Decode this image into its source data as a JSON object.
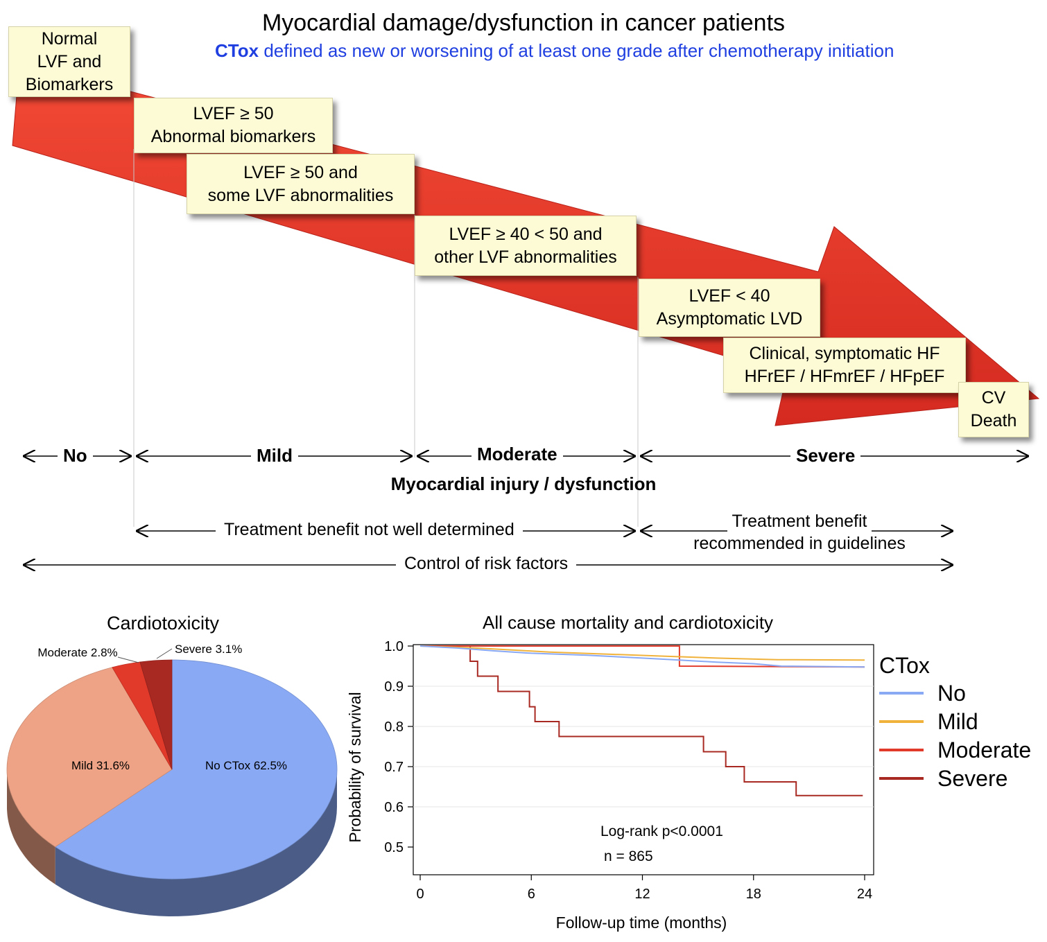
{
  "title": "Myocardial damage/dysfunction in cancer patients",
  "subtitle": {
    "bold": "CTox",
    "rest": "defined as new or worsening of at least one grade after chemotherapy initiation"
  },
  "stages": [
    {
      "text": "Normal\nLVF and\nBiomarkers"
    },
    {
      "text": "LVEF ≥ 50\nAbnormal biomarkers"
    },
    {
      "text": "LVEF ≥ 50 and\nsome LVF abnormalities"
    },
    {
      "text": "LVEF ≥ 40 < 50 and\nother LVF abnormalities"
    },
    {
      "text": "LVEF < 40\nAsymptomatic LVD"
    },
    {
      "text": "Clinical, symptomatic  HF\nHFrEF / HFmrEF / HFpEF"
    },
    {
      "text": "CV\nDeath"
    }
  ],
  "severity": {
    "no": "No",
    "mild": "Mild",
    "moderate": "Moderate",
    "severe": "Severe",
    "axis_label": "Myocardial injury / dysfunction"
  },
  "treatment": {
    "not_determined": "Treatment benefit not well determined",
    "recommended_line1": "Treatment benefit",
    "recommended_line2": "recommended in guidelines",
    "control": "Control of risk factors"
  },
  "colors": {
    "arrow": "#e8352a",
    "box": "#fdfbd6",
    "no": "#89a9f5",
    "mild": "#eea386",
    "moderate": "#e23a2a",
    "severe": "#a82822",
    "subtitle": "#1f3fe0"
  },
  "pie": {
    "title": "Cardiotoxicity",
    "chart_data": {
      "type": "pie",
      "slices": [
        {
          "label": "No CTox 62.5%",
          "value": 62.5,
          "color": "#89a9f5"
        },
        {
          "label": "Mild 31.6%",
          "value": 31.6,
          "color": "#eea386"
        },
        {
          "label": "Moderate 2.8%",
          "value": 2.8,
          "color": "#e23a2a"
        },
        {
          "label": "Severe 3.1%",
          "value": 3.1,
          "color": "#a82822"
        }
      ]
    }
  },
  "km": {
    "title": "All cause mortality and cardiotoxicity",
    "xlabel": "Follow-up time (months)",
    "ylabel": "Probability of survival",
    "annotation1": "Log-rank p<0.0001",
    "annotation2": "n = 865",
    "legend_title": "CTox",
    "chart_data": {
      "type": "line",
      "xlim": [
        0,
        24
      ],
      "ylim": [
        0.5,
        1.0
      ],
      "xticks": [
        "0",
        "6",
        "12",
        "18",
        "24"
      ],
      "yticks": [
        "0.5",
        "0.6",
        "0.7",
        "0.8",
        "0.9",
        "1.0"
      ],
      "series": [
        {
          "name": "No",
          "color": "#89a9f5",
          "points": [
            [
              0,
              1.0
            ],
            [
              2,
              0.995
            ],
            [
              4,
              0.988
            ],
            [
              6,
              0.982
            ],
            [
              9,
              0.977
            ],
            [
              12,
              0.97
            ],
            [
              14,
              0.965
            ],
            [
              16,
              0.96
            ],
            [
              18,
              0.956
            ],
            [
              19.5,
              0.95
            ],
            [
              24,
              0.948
            ]
          ]
        },
        {
          "name": "Mild",
          "color": "#f0b23a",
          "points": [
            [
              0,
              1.0
            ],
            [
              3,
              0.995
            ],
            [
              5,
              0.99
            ],
            [
              7,
              0.985
            ],
            [
              10,
              0.98
            ],
            [
              13,
              0.975
            ],
            [
              16,
              0.97
            ],
            [
              19.3,
              0.966
            ],
            [
              24,
              0.965
            ]
          ]
        },
        {
          "name": "Moderate",
          "color": "#e23a2a",
          "points": [
            [
              0,
              1.0
            ],
            [
              14,
              1.0
            ],
            [
              14,
              0.95
            ],
            [
              24,
              0.948
            ]
          ]
        },
        {
          "name": "Severe",
          "color": "#a82822",
          "points": [
            [
              0,
              1.0
            ],
            [
              2.7,
              1.0
            ],
            [
              2.7,
              0.962
            ],
            [
              3.1,
              0.962
            ],
            [
              3.1,
              0.925
            ],
            [
              4.2,
              0.925
            ],
            [
              4.2,
              0.887
            ],
            [
              5.9,
              0.887
            ],
            [
              5.9,
              0.849
            ],
            [
              6.2,
              0.849
            ],
            [
              6.2,
              0.812
            ],
            [
              7.5,
              0.812
            ],
            [
              7.5,
              0.775
            ],
            [
              15.3,
              0.775
            ],
            [
              15.3,
              0.737
            ],
            [
              16.5,
              0.737
            ],
            [
              16.5,
              0.7
            ],
            [
              17.5,
              0.7
            ],
            [
              17.5,
              0.662
            ],
            [
              20.3,
              0.662
            ],
            [
              20.3,
              0.628
            ],
            [
              23.9,
              0.628
            ]
          ]
        }
      ]
    }
  }
}
